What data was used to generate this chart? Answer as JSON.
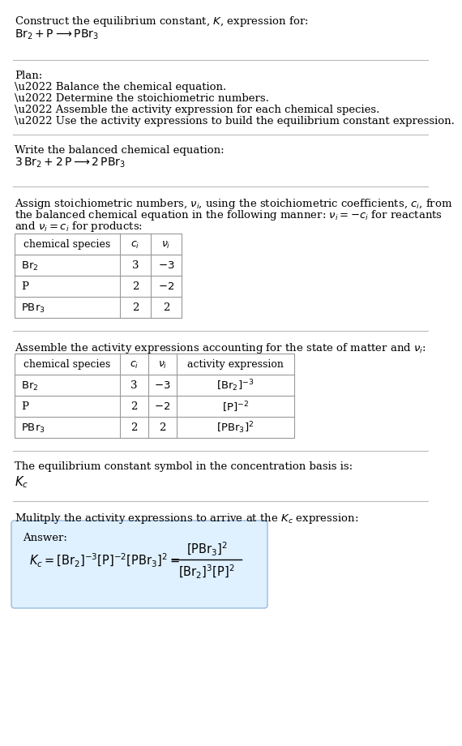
{
  "bg_color": "#ffffff",
  "answer_bg_color": "#dff0ff",
  "text_color": "#000000",
  "sep_color": "#bbbbbb",
  "table_color": "#999999",
  "font_size": 9.5,
  "title_line1": "Construct the equilibrium constant, $K$, expression for:",
  "title_chem": "$\\mathrm{Br_2 + P \\longrightarrow PBr_3}$",
  "plan_header": "Plan:",
  "plan_items": [
    "\\u2022 Balance the chemical equation.",
    "\\u2022 Determine the stoichiometric numbers.",
    "\\u2022 Assemble the activity expression for each chemical species.",
    "\\u2022 Use the activity expressions to build the equilibrium constant expression."
  ],
  "balanced_header": "Write the balanced chemical equation:",
  "balanced_eq": "$\\mathrm{3\\,Br_2 + 2\\,P \\longrightarrow 2\\,PBr_3}$",
  "stoich_lines": [
    "Assign stoichiometric numbers, $\\nu_i$, using the stoichiometric coefficients, $c_i$, from",
    "the balanced chemical equation in the following manner: $\\nu_i = -c_i$ for reactants",
    "and $\\nu_i = c_i$ for products:"
  ],
  "table1_headers": [
    "chemical species",
    "$c_i$",
    "$\\nu_i$"
  ],
  "table1_rows": [
    [
      "$\\mathrm{Br_2}$",
      "3",
      "$-3$"
    ],
    [
      "P",
      "2",
      "$-2$"
    ],
    [
      "$\\mathrm{PBr_3}$",
      "2",
      "2"
    ]
  ],
  "assemble_text": "Assemble the activity expressions accounting for the state of matter and $\\nu_i$:",
  "table2_headers": [
    "chemical species",
    "$c_i$",
    "$\\nu_i$",
    "activity expression"
  ],
  "table2_rows": [
    [
      "$\\mathrm{Br_2}$",
      "3",
      "$-3$",
      "$[\\mathrm{Br_2}]^{-3}$"
    ],
    [
      "P",
      "2",
      "$-2$",
      "$[\\mathrm{P}]^{-2}$"
    ],
    [
      "$\\mathrm{PBr_3}$",
      "2",
      "2",
      "$[\\mathrm{PBr_3}]^{2}$"
    ]
  ],
  "kc_text": "The equilibrium constant symbol in the concentration basis is:",
  "kc_symbol": "$K_c$",
  "multiply_text": "Mulitply the activity expressions to arrive at the $K_c$ expression:",
  "answer_label": "Answer:"
}
